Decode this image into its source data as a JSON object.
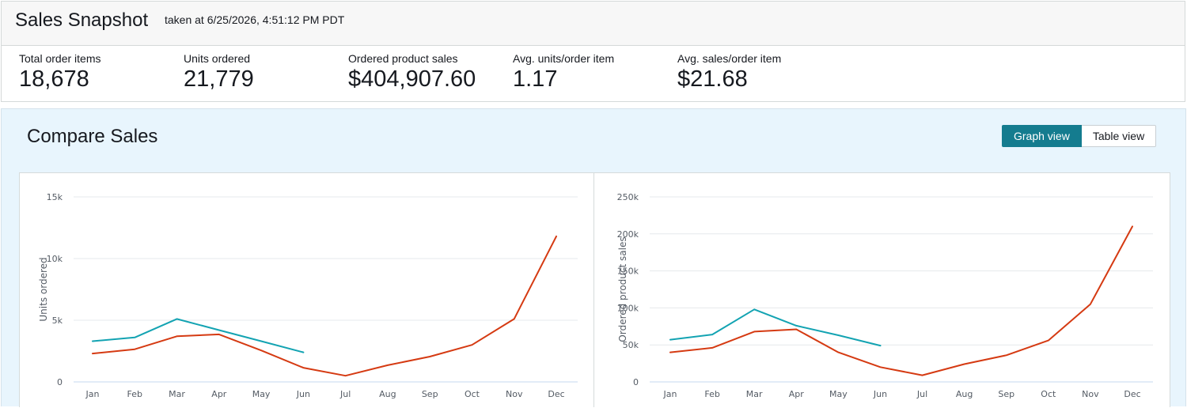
{
  "snapshot": {
    "title": "Sales Snapshot",
    "timestamp": "taken at 6/25/2026, 4:51:12 PM PDT",
    "metrics": [
      {
        "label": "Total order items",
        "value": "18,678"
      },
      {
        "label": "Units ordered",
        "value": "21,779"
      },
      {
        "label": "Ordered product sales",
        "value": "$404,907.60"
      },
      {
        "label": "Avg. units/order item",
        "value": "1.17"
      },
      {
        "label": "Avg. sales/order item",
        "value": "$21.68"
      }
    ]
  },
  "compare": {
    "title": "Compare Sales",
    "graph_view_label": "Graph view",
    "table_view_label": "Table view",
    "accent_color": "#147c8f"
  },
  "colors": {
    "current_year": "#13a3b2",
    "previous_year": "#d53a12"
  },
  "chart_data": [
    {
      "type": "line",
      "title": "",
      "xlabel": "",
      "ylabel": "Units ordered",
      "categories": [
        "Jan",
        "Feb",
        "Mar",
        "Apr",
        "May",
        "Jun",
        "Jul",
        "Aug",
        "Sep",
        "Oct",
        "Nov",
        "Dec"
      ],
      "ylim": [
        0,
        15000
      ],
      "yticks": [
        0,
        5000,
        10000,
        15000
      ],
      "ytick_labels": [
        "0",
        "5k",
        "10k",
        "15k"
      ],
      "grid": true,
      "series": [
        {
          "color": "#13a3b2",
          "values": [
            3300,
            3600,
            5100,
            4200,
            3300,
            2400,
            null,
            null,
            null,
            null,
            null,
            null
          ]
        },
        {
          "color": "#d53a12",
          "values": [
            2300,
            2650,
            3700,
            3850,
            2550,
            1150,
            500,
            1350,
            2050,
            3000,
            5100,
            11800
          ]
        }
      ]
    },
    {
      "type": "line",
      "title": "",
      "xlabel": "",
      "ylabel": "Ordered product sales",
      "categories": [
        "Jan",
        "Feb",
        "Mar",
        "Apr",
        "May",
        "Jun",
        "Jul",
        "Aug",
        "Sep",
        "Oct",
        "Nov",
        "Dec"
      ],
      "ylim": [
        0,
        250000
      ],
      "yticks": [
        0,
        50000,
        100000,
        150000,
        200000,
        250000
      ],
      "ytick_labels": [
        "0",
        "50k",
        "100k",
        "150k",
        "200k",
        "250k"
      ],
      "grid": true,
      "series": [
        {
          "color": "#13a3b2",
          "values": [
            57000,
            64000,
            98000,
            76000,
            63000,
            49000,
            null,
            null,
            null,
            null,
            null,
            null
          ]
        },
        {
          "color": "#d53a12",
          "values": [
            40000,
            46000,
            68000,
            71000,
            40000,
            20000,
            9000,
            24000,
            36000,
            56000,
            105000,
            210000
          ]
        }
      ]
    }
  ]
}
